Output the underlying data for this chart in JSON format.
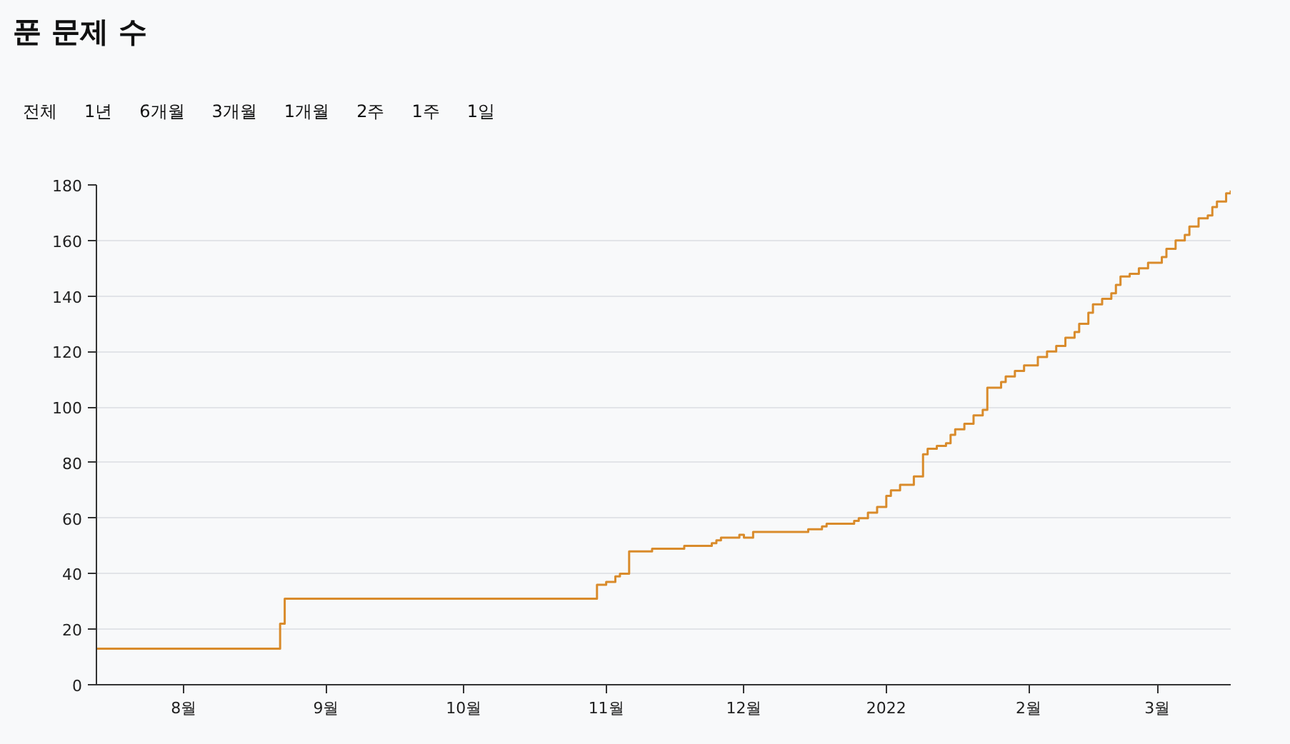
{
  "chart_data": {
    "type": "step",
    "title": "푼 문제 수",
    "annotations": [
      "전체",
      "1년",
      "6개월",
      "3개월",
      "1개월",
      "2주",
      "1주",
      "1일"
    ],
    "x": [
      "2021-07-13",
      "2021-08-22",
      "2021-08-23",
      "2021-10-30",
      "2021-11-01",
      "2021-11-03",
      "2021-11-04",
      "2021-11-06",
      "2021-11-11",
      "2021-11-18",
      "2021-11-24",
      "2021-11-25",
      "2021-11-26",
      "2021-11-30",
      "2021-12-01",
      "2021-12-03",
      "2021-12-15",
      "2021-12-18",
      "2021-12-19",
      "2021-12-25",
      "2021-12-26",
      "2021-12-28",
      "2021-12-30",
      "2022-01-01",
      "2022-01-02",
      "2022-01-04",
      "2022-01-07",
      "2022-01-09",
      "2022-01-10",
      "2022-01-12",
      "2022-01-14",
      "2022-01-15",
      "2022-01-16",
      "2022-01-18",
      "2022-01-20",
      "2022-01-22",
      "2022-01-23",
      "2022-01-26",
      "2022-01-27",
      "2022-01-29",
      "2022-01-31",
      "2022-02-03",
      "2022-02-05",
      "2022-02-07",
      "2022-02-09",
      "2022-02-11",
      "2022-02-12",
      "2022-02-14",
      "2022-02-15",
      "2022-02-17",
      "2022-02-19",
      "2022-02-20",
      "2022-02-21",
      "2022-02-23",
      "2022-02-25",
      "2022-02-27",
      "2022-03-02",
      "2022-03-03",
      "2022-03-05",
      "2022-03-07",
      "2022-03-08",
      "2022-03-10",
      "2022-03-12",
      "2022-03-13",
      "2022-03-14",
      "2022-03-16",
      "2022-03-17"
    ],
    "series": [
      {
        "color": "#d98b2b",
        "values": [
          13,
          22,
          31,
          36,
          37,
          39,
          40,
          48,
          49,
          50,
          51,
          52,
          53,
          54,
          53,
          55,
          56,
          57,
          58,
          59,
          60,
          62,
          64,
          68,
          70,
          72,
          75,
          83,
          85,
          86,
          87,
          90,
          92,
          94,
          97,
          99,
          107,
          109,
          111,
          113,
          115,
          118,
          120,
          122,
          125,
          127,
          130,
          134,
          137,
          139,
          141,
          144,
          147,
          148,
          150,
          152,
          154,
          157,
          160,
          162,
          165,
          168,
          169,
          172,
          174,
          177,
          178
        ]
      }
    ],
    "xlim": [
      "2021-07-13",
      "2022-03-17"
    ],
    "xticks": [
      {
        "value": "2021-08-01",
        "label": "8월"
      },
      {
        "value": "2021-09-01",
        "label": "9월"
      },
      {
        "value": "2021-10-01",
        "label": "10월"
      },
      {
        "value": "2021-11-01",
        "label": "11월"
      },
      {
        "value": "2021-12-01",
        "label": "12월"
      },
      {
        "value": "2022-01-01",
        "label": "2022"
      },
      {
        "value": "2022-02-01",
        "label": "2월"
      },
      {
        "value": "2022-03-01",
        "label": "3월"
      }
    ],
    "ylim": [
      0,
      180
    ],
    "yticks": [
      0,
      20,
      40,
      60,
      80,
      100,
      120,
      140,
      160,
      180
    ],
    "grid": "y",
    "line_style": "solid",
    "marker": "none"
  }
}
